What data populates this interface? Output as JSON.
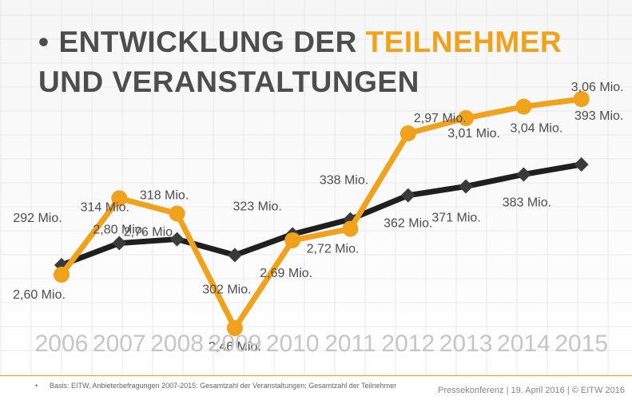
{
  "title": {
    "bullet": "•",
    "part1": "ENTWICKLUNG DER ",
    "accent": "TEILNEHMER",
    "line2": "UND VERANSTALTUNGEN"
  },
  "colors": {
    "participants": "#f0a21c",
    "events": "#1f1f1f",
    "title": "#4d4d4d",
    "axis_years": "#c6c6c6"
  },
  "chart_data": {
    "type": "line",
    "x": [
      "2006",
      "2007",
      "2008",
      "2009",
      "2010",
      "2011",
      "2012",
      "2013",
      "2014",
      "2015"
    ],
    "series": [
      {
        "key": "participants",
        "marker": "circle",
        "values": [
          2.6,
          2.8,
          2.76,
          2.46,
          2.69,
          2.72,
          2.97,
          3.01,
          3.04,
          3.06
        ],
        "labels": [
          "2,60 Mio.",
          "2,80 Mio.",
          "2,76 Mio.",
          "2,46 Mio.",
          "2,69 Mio.",
          "2,72 Mio.",
          "2,97 Mio.",
          "3,01 Mio.",
          "3,04 Mio.",
          "3,06 Mio."
        ]
      },
      {
        "key": "events",
        "marker": "diamond",
        "values": [
          292,
          314,
          318,
          302,
          323,
          338,
          362,
          371,
          383,
          393
        ],
        "labels": [
          "292 Mio.",
          "314 Mio.",
          "318 Mio.",
          "302 Mio.",
          "323 Mio.",
          "338 Mio.",
          "362 Mio.",
          "371 Mio.",
          "383 Mio.",
          "393 Mio."
        ]
      }
    ],
    "grid": false,
    "legend": "none"
  },
  "footer": {
    "bullet": "•",
    "note": "Basis: EITW, Anbieterbefragungen 2007-2015: Gesamtzahl der Veranstaltungen; Gesamtzahl der Teilnehmer",
    "right": "Pressekonferenz | 19. April 2016 | © EITW 2016"
  }
}
